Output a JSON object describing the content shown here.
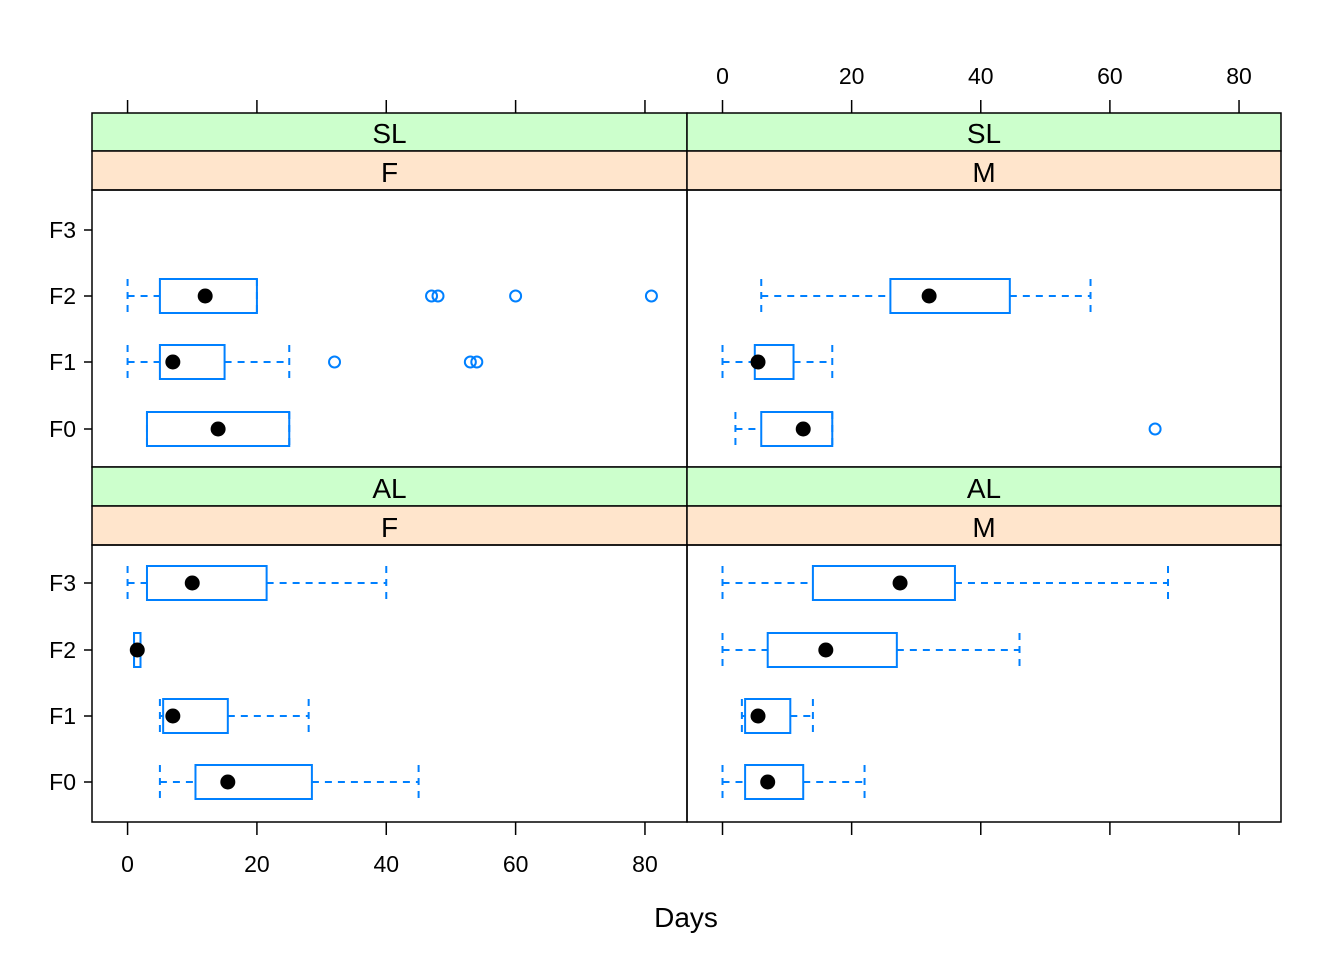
{
  "chart_data": {
    "type": "boxplot",
    "xlabel": "Days",
    "x_ticks": [
      0,
      20,
      40,
      60,
      80
    ],
    "xlim": [
      -5.5,
      86.5
    ],
    "categories": [
      "F0",
      "F1",
      "F2",
      "F3"
    ],
    "colors": {
      "box": "#0080ff",
      "median": "#000000",
      "strip_outer": "#ccffcc",
      "strip_inner": "#ffe5cc"
    },
    "panels": [
      {
        "strip_outer": "SL",
        "strip_inner": "F",
        "boxes": [
          {
            "category": "F0",
            "whisker_low": 3,
            "q1": 3,
            "median": 14,
            "q3": 25,
            "whisker_high": 25,
            "outliers": []
          },
          {
            "category": "F1",
            "whisker_low": 0,
            "q1": 5,
            "median": 7,
            "q3": 15,
            "whisker_high": 25,
            "outliers": [
              32,
              53,
              54
            ]
          },
          {
            "category": "F2",
            "whisker_low": 0,
            "q1": 5,
            "median": 12,
            "q3": 20,
            "whisker_high": 20,
            "outliers": [
              47,
              48,
              60,
              81
            ]
          }
        ]
      },
      {
        "strip_outer": "SL",
        "strip_inner": "M",
        "boxes": [
          {
            "category": "F0",
            "whisker_low": 2,
            "q1": 6,
            "median": 12.5,
            "q3": 17,
            "whisker_high": 17,
            "outliers": [
              67
            ]
          },
          {
            "category": "F1",
            "whisker_low": 0,
            "q1": 5,
            "median": 5.5,
            "q3": 11,
            "whisker_high": 17,
            "outliers": []
          },
          {
            "category": "F2",
            "whisker_low": 6,
            "q1": 26,
            "median": 32,
            "q3": 44.5,
            "whisker_high": 57,
            "outliers": []
          }
        ]
      },
      {
        "strip_outer": "AL",
        "strip_inner": "F",
        "boxes": [
          {
            "category": "F0",
            "whisker_low": 5,
            "q1": 10.5,
            "median": 15.5,
            "q3": 28.5,
            "whisker_high": 45,
            "outliers": []
          },
          {
            "category": "F1",
            "whisker_low": 5,
            "q1": 5.5,
            "median": 7,
            "q3": 15.5,
            "whisker_high": 28,
            "outliers": []
          },
          {
            "category": "F2",
            "whisker_low": 1,
            "q1": 1,
            "median": 1.5,
            "q3": 2,
            "whisker_high": 2,
            "outliers": []
          },
          {
            "category": "F3",
            "whisker_low": 0,
            "q1": 3,
            "median": 10,
            "q3": 21.5,
            "whisker_high": 40,
            "outliers": []
          }
        ]
      },
      {
        "strip_outer": "AL",
        "strip_inner": "M",
        "boxes": [
          {
            "category": "F0",
            "whisker_low": 0,
            "q1": 3.5,
            "median": 7,
            "q3": 12.5,
            "whisker_high": 22,
            "outliers": []
          },
          {
            "category": "F1",
            "whisker_low": 3,
            "q1": 3.5,
            "median": 5.5,
            "q3": 10.5,
            "whisker_high": 14,
            "outliers": []
          },
          {
            "category": "F2",
            "whisker_low": 0,
            "q1": 7,
            "median": 16,
            "q3": 27,
            "whisker_high": 46,
            "outliers": []
          },
          {
            "category": "F3",
            "whisker_low": 0,
            "q1": 14,
            "median": 27.5,
            "q3": 36,
            "whisker_high": 69,
            "outliers": []
          }
        ]
      }
    ]
  }
}
